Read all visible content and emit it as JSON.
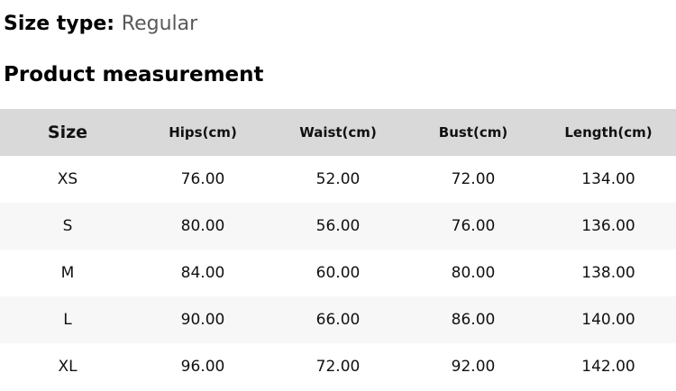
{
  "page": {
    "size_type_label": "Size type:",
    "size_type_value": "Regular",
    "section_title": "Product measurement"
  },
  "table": {
    "columns": [
      "Size",
      "Hips(cm)",
      "Waist(cm)",
      "Bust(cm)",
      "Length(cm)"
    ],
    "rows": [
      [
        "XS",
        "76.00",
        "52.00",
        "72.00",
        "134.00"
      ],
      [
        "S",
        "80.00",
        "56.00",
        "76.00",
        "136.00"
      ],
      [
        "M",
        "84.00",
        "60.00",
        "80.00",
        "138.00"
      ],
      [
        "L",
        "90.00",
        "66.00",
        "86.00",
        "140.00"
      ],
      [
        "XL",
        "96.00",
        "72.00",
        "92.00",
        "142.00"
      ]
    ]
  },
  "colors": {
    "header_bg": "#d9d9d9",
    "alt_row_bg": "#f7f7f7",
    "muted_text": "#595959",
    "text": "#111111"
  }
}
